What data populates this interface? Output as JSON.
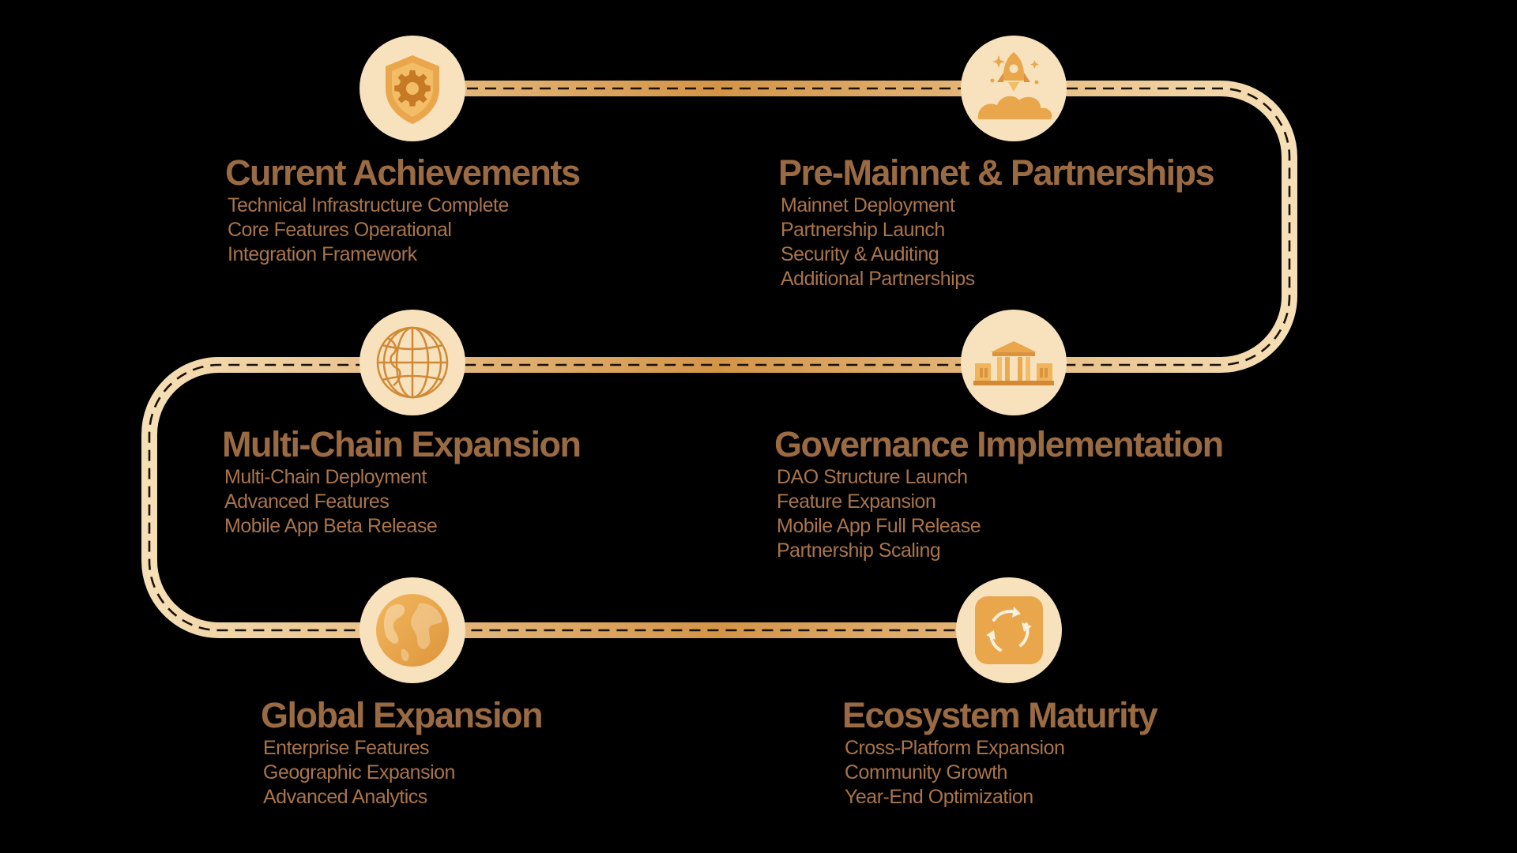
{
  "colors": {
    "background": "#000000",
    "title_text": "#9a6a42",
    "item_text": "#a9744a",
    "path_light": "#f6dfb6",
    "path_dark": "#d39447",
    "circle_fill": "#f8e1bd",
    "icon_gold": "#e7a64a"
  },
  "milestones": [
    {
      "title": "Current Achievements",
      "icon": "shield-gear-icon",
      "items": [
        "Technical Infrastructure Complete",
        "Core Features Operational",
        "Integration Framework"
      ]
    },
    {
      "title": "Pre-Mainnet & Partnerships",
      "icon": "rocket-launch-icon",
      "items": [
        "Mainnet Deployment",
        "Partnership Launch",
        "Security & Auditing",
        "Additional Partnerships"
      ]
    },
    {
      "title": "Multi-Chain Expansion",
      "icon": "globe-wireframe-icon",
      "items": [
        "Multi-Chain Deployment",
        "Advanced Features",
        "Mobile App Beta Release"
      ]
    },
    {
      "title": "Governance Implementation",
      "icon": "government-building-icon",
      "items": [
        "DAO Structure Launch",
        "Feature Expansion",
        "Mobile App Full Release",
        "Partnership Scaling"
      ]
    },
    {
      "title": "Global Expansion",
      "icon": "earth-globe-icon",
      "items": [
        "Enterprise Features",
        "Geographic Expansion",
        "Advanced Analytics"
      ]
    },
    {
      "title": "Ecosystem Maturity",
      "icon": "cycle-arrows-icon",
      "items": [
        "Cross-Platform Expansion",
        "Community Growth",
        "Year-End Optimization"
      ]
    }
  ]
}
